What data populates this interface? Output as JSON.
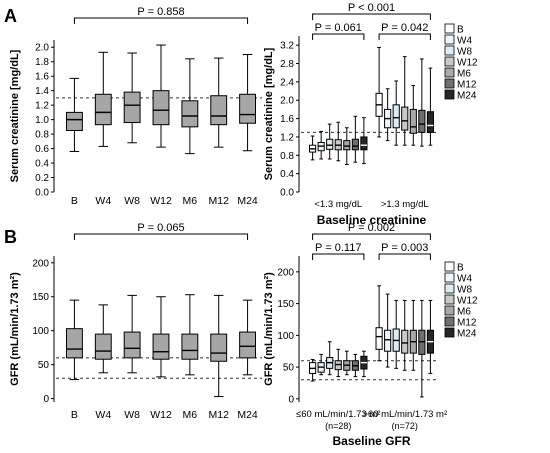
{
  "panel_labels": [
    "A",
    "B"
  ],
  "colors": {
    "B": "#ffffff",
    "W4": "#eef6fb",
    "W8": "#dcecf5",
    "W12": "#c9c9c9",
    "M6": "#a8a8a8",
    "M12": "#6f6f6f",
    "M24": "#262626",
    "single": "#a6a6a6",
    "line": "#000000"
  },
  "chart_data": [
    {
      "type": "box",
      "id": "A-left",
      "title": "",
      "xlabel": "",
      "ylabel": "Serum creatinine [mg/dL]",
      "ylim": [
        0,
        2.1
      ],
      "yticks": [
        "0.0",
        "0.2",
        "0.4",
        "0.6",
        "0.8",
        "1.0",
        "1.2",
        "1.4",
        "1.6",
        "1.8",
        "2.0"
      ],
      "categories": [
        "B",
        "W4",
        "W8",
        "W12",
        "M6",
        "M12",
        "M24"
      ],
      "boxes": [
        {
          "min": 0.56,
          "q1": 0.85,
          "median": 1.0,
          "q3": 1.1,
          "max": 1.57
        },
        {
          "min": 0.63,
          "q1": 0.93,
          "median": 1.1,
          "q3": 1.35,
          "max": 1.93
        },
        {
          "min": 0.68,
          "q1": 0.96,
          "median": 1.2,
          "q3": 1.38,
          "max": 1.92
        },
        {
          "min": 0.62,
          "q1": 0.93,
          "median": 1.13,
          "q3": 1.4,
          "max": 2.03
        },
        {
          "min": 0.53,
          "q1": 0.9,
          "median": 1.05,
          "q3": 1.26,
          "max": 1.84
        },
        {
          "min": 0.62,
          "q1": 0.93,
          "median": 1.05,
          "q3": 1.33,
          "max": 1.85
        },
        {
          "min": 0.57,
          "q1": 0.95,
          "median": 1.07,
          "q3": 1.35,
          "max": 1.9
        }
      ],
      "ref_lines": [
        1.3
      ],
      "annotations": [
        {
          "text": "P = 0.858",
          "from": 0,
          "to": 6
        }
      ]
    },
    {
      "type": "box",
      "id": "A-right",
      "title": "",
      "xlabel": "Baseline creatinine",
      "ylabel": "Serum creatinine [mg/dL]",
      "ylim": [
        0,
        3.4
      ],
      "yticks": [
        "0.0",
        "0.4",
        "0.8",
        "1.2",
        "1.6",
        "2.0",
        "2.4",
        "2.8",
        "3.2"
      ],
      "groups": [
        "<1.3 mg/dL",
        ">1.3 mg/dL"
      ],
      "series": [
        {
          "name": "B",
          "boxes": [
            {
              "min": 0.7,
              "q1": 0.87,
              "median": 0.94,
              "q3": 1.02,
              "max": 1.22
            },
            {
              "min": 1.2,
              "q1": 1.65,
              "median": 1.9,
              "q3": 2.15,
              "max": 3.15
            }
          ]
        },
        {
          "name": "W4",
          "boxes": [
            {
              "min": 0.72,
              "q1": 0.9,
              "median": 1.0,
              "q3": 1.08,
              "max": 1.32
            },
            {
              "min": 1.12,
              "q1": 1.4,
              "median": 1.6,
              "q3": 1.8,
              "max": 2.25
            }
          ]
        },
        {
          "name": "W8",
          "boxes": [
            {
              "min": 0.72,
              "q1": 0.93,
              "median": 1.02,
              "q3": 1.15,
              "max": 1.48
            },
            {
              "min": 1.02,
              "q1": 1.4,
              "median": 1.62,
              "q3": 1.9,
              "max": 2.42
            }
          ]
        },
        {
          "name": "W12",
          "boxes": [
            {
              "min": 0.68,
              "q1": 0.92,
              "median": 1.02,
              "q3": 1.14,
              "max": 1.52
            },
            {
              "min": 1.02,
              "q1": 1.35,
              "median": 1.55,
              "q3": 1.85,
              "max": 2.95
            }
          ]
        },
        {
          "name": "M6",
          "boxes": [
            {
              "min": 0.6,
              "q1": 0.92,
              "median": 1.0,
              "q3": 1.12,
              "max": 1.4
            },
            {
              "min": 1.02,
              "q1": 1.28,
              "median": 1.42,
              "q3": 1.8,
              "max": 2.32
            }
          ]
        },
        {
          "name": "M12",
          "boxes": [
            {
              "min": 0.65,
              "q1": 0.92,
              "median": 1.0,
              "q3": 1.15,
              "max": 1.65
            },
            {
              "min": 1.0,
              "q1": 1.3,
              "median": 1.48,
              "q3": 1.78,
              "max": 2.9
            }
          ]
        },
        {
          "name": "M24",
          "boxes": [
            {
              "min": 0.62,
              "q1": 0.92,
              "median": 1.02,
              "q3": 1.2,
              "max": 1.62
            },
            {
              "min": 1.02,
              "q1": 1.3,
              "median": 1.45,
              "q3": 1.75,
              "max": 2.7
            }
          ]
        }
      ],
      "ref_lines": [
        1.3
      ],
      "annotations": [
        {
          "text": "P = 0.061",
          "level": 1,
          "group": 0
        },
        {
          "text": "P = 0.042",
          "level": 1,
          "group": 1
        },
        {
          "text": "P < 0.001",
          "level": 2,
          "group": "both"
        }
      ],
      "legend": [
        "B",
        "W4",
        "W8",
        "W12",
        "M6",
        "M12",
        "M24"
      ],
      "legend_position": "right"
    },
    {
      "type": "box",
      "id": "B-left",
      "title": "",
      "xlabel": "",
      "ylabel": "GFR (mL/min/1.73 m²)",
      "ylim": [
        -5,
        210
      ],
      "yticks": [
        "0",
        "50",
        "100",
        "150",
        "200"
      ],
      "categories": [
        "B",
        "W4",
        "W8",
        "W12",
        "M6",
        "M12",
        "M24"
      ],
      "boxes": [
        {
          "min": 28,
          "q1": 60,
          "median": 73,
          "q3": 103,
          "max": 145
        },
        {
          "min": 38,
          "q1": 58,
          "median": 70,
          "q3": 95,
          "max": 138
        },
        {
          "min": 38,
          "q1": 60,
          "median": 74,
          "q3": 98,
          "max": 152
        },
        {
          "min": 32,
          "q1": 58,
          "median": 69,
          "q3": 95,
          "max": 150
        },
        {
          "min": 35,
          "q1": 58,
          "median": 71,
          "q3": 95,
          "max": 153
        },
        {
          "min": 3,
          "q1": 55,
          "median": 67,
          "q3": 95,
          "max": 152
        },
        {
          "min": 35,
          "q1": 60,
          "median": 77,
          "q3": 98,
          "max": 145
        }
      ],
      "ref_lines": [
        60,
        30
      ],
      "annotations": [
        {
          "text": "P = 0.065",
          "from": 0,
          "to": 6
        }
      ]
    },
    {
      "type": "box",
      "id": "B-right",
      "title": "",
      "xlabel": "Baseline GFR",
      "ylabel": "GFR (mL/min/1.73 m²)",
      "ylim": [
        -5,
        225
      ],
      "yticks": [
        "0",
        "50",
        "100",
        "150",
        "200"
      ],
      "groups": [
        "≤60 mL/min/1.73 m²\n(n=28)",
        ">60 mL/min/1.73 m²\n(n=72)"
      ],
      "series": [
        {
          "name": "B",
          "boxes": [
            {
              "min": 28,
              "q1": 40,
              "median": 48,
              "q3": 57,
              "max": 62
            },
            {
              "min": 60,
              "q1": 78,
              "median": 98,
              "q3": 112,
              "max": 178
            }
          ]
        },
        {
          "name": "W4",
          "boxes": [
            {
              "min": 38,
              "q1": 42,
              "median": 50,
              "q3": 57,
              "max": 70
            },
            {
              "min": 50,
              "q1": 75,
              "median": 93,
              "q3": 108,
              "max": 165
            }
          ]
        },
        {
          "name": "W8",
          "boxes": [
            {
              "min": 38,
              "q1": 48,
              "median": 57,
              "q3": 65,
              "max": 90
            },
            {
              "min": 48,
              "q1": 75,
              "median": 92,
              "q3": 110,
              "max": 155
            }
          ]
        },
        {
          "name": "W12",
          "boxes": [
            {
              "min": 35,
              "q1": 46,
              "median": 54,
              "q3": 60,
              "max": 78
            },
            {
              "min": 45,
              "q1": 72,
              "median": 88,
              "q3": 108,
              "max": 155
            }
          ]
        },
        {
          "name": "M6",
          "boxes": [
            {
              "min": 38,
              "q1": 45,
              "median": 53,
              "q3": 60,
              "max": 75
            },
            {
              "min": 45,
              "q1": 72,
              "median": 90,
              "q3": 108,
              "max": 155
            }
          ]
        },
        {
          "name": "M12",
          "boxes": [
            {
              "min": 35,
              "q1": 45,
              "median": 52,
              "q3": 60,
              "max": 70
            },
            {
              "min": 3,
              "q1": 70,
              "median": 90,
              "q3": 108,
              "max": 155
            }
          ]
        },
        {
          "name": "M24",
          "boxes": [
            {
              "min": 35,
              "q1": 47,
              "median": 57,
              "q3": 67,
              "max": 75
            },
            {
              "min": 40,
              "q1": 72,
              "median": 90,
              "q3": 108,
              "max": 155
            }
          ]
        }
      ],
      "ref_lines": [
        60,
        30
      ],
      "annotations": [
        {
          "text": "P = 0.117",
          "level": 1,
          "group": 0
        },
        {
          "text": "P = 0.003",
          "level": 1,
          "group": 1
        },
        {
          "text": "P = 0.002",
          "level": 2,
          "group": "both"
        }
      ],
      "legend": [
        "B",
        "W4",
        "W8",
        "W12",
        "M6",
        "M12",
        "M24"
      ],
      "legend_position": "right"
    }
  ]
}
